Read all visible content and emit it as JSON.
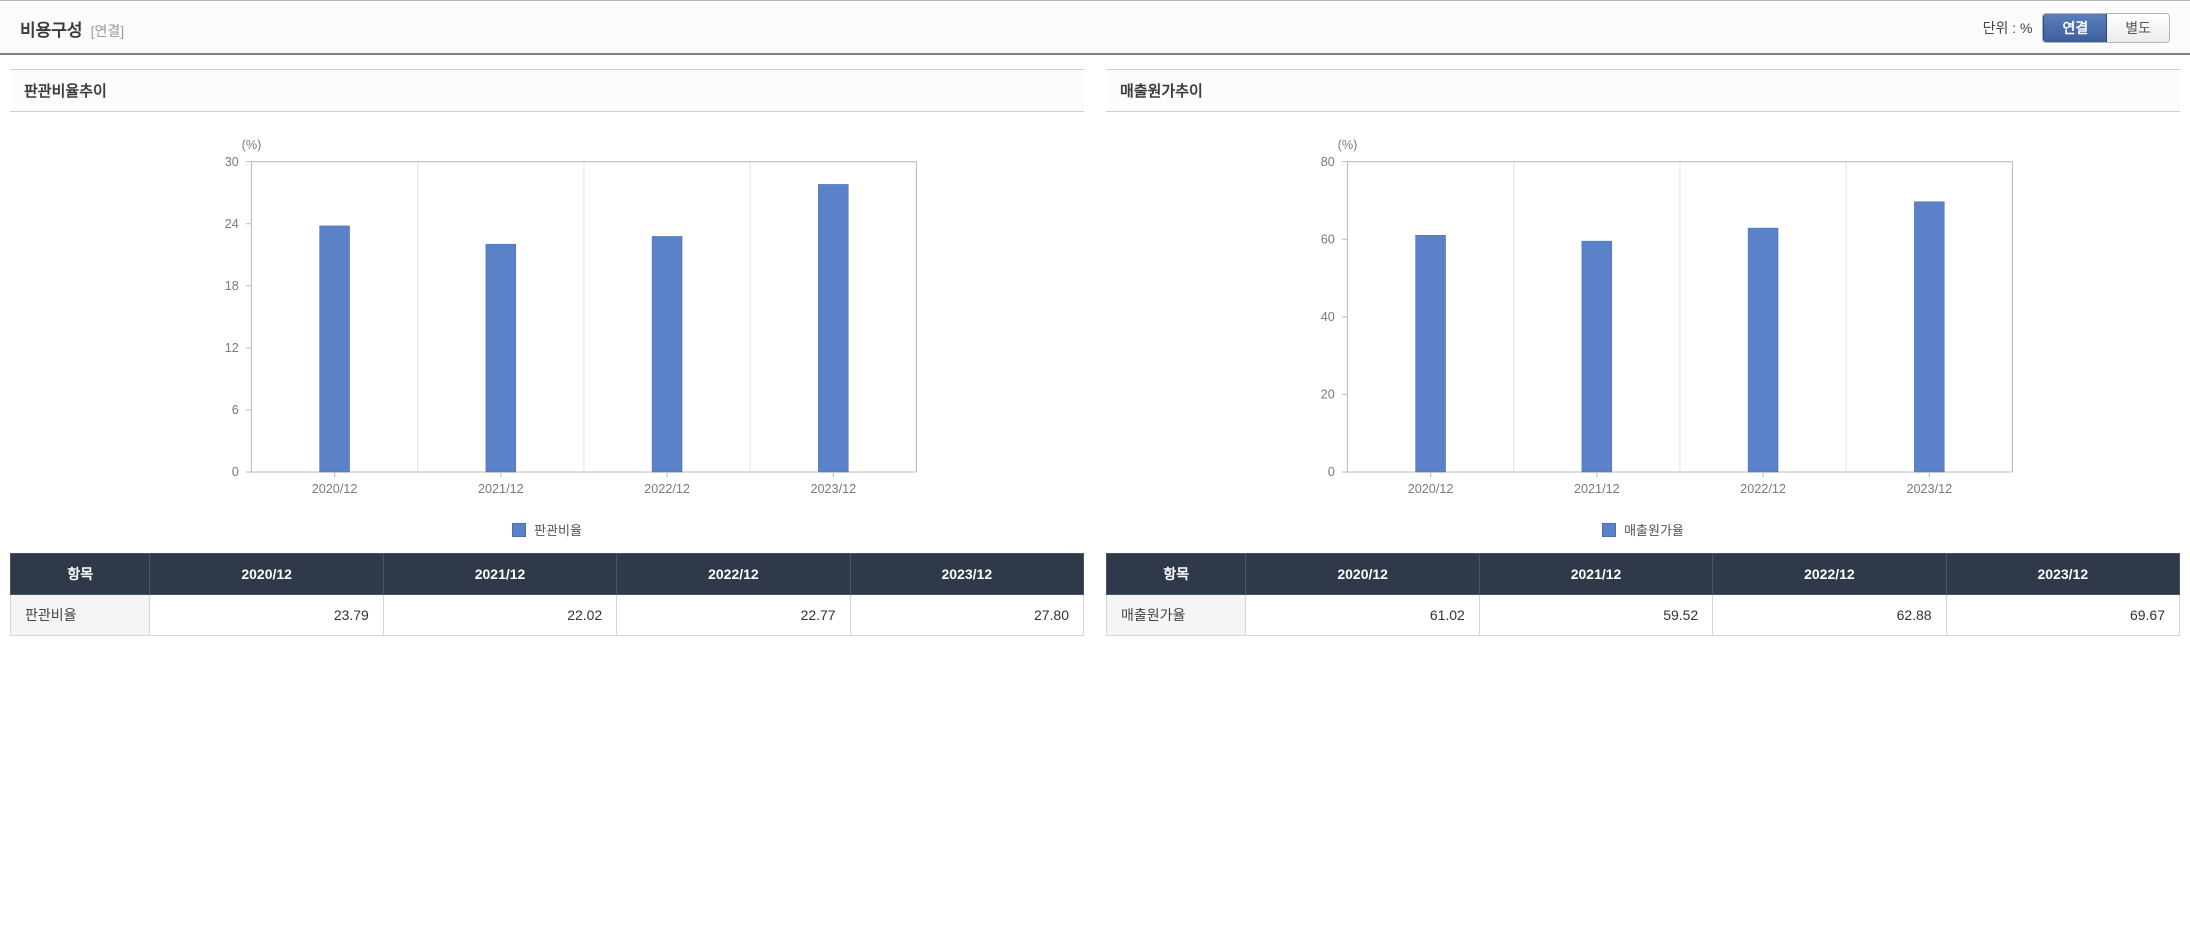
{
  "header": {
    "title": "비용구성",
    "subtitle": "[연결]",
    "unit_label": "단위 : %",
    "toggle": {
      "active": "연결",
      "inactive": "별도"
    }
  },
  "colors": {
    "bar_fill": "#5b81c8",
    "bar_stroke": "#4a6fb0",
    "grid": "#e4e4e4",
    "frame": "#bcbcbc",
    "axis_text": "#7a7a7a",
    "table_header_bg": "#2f394a",
    "table_header_fg": "#ffffff",
    "row_head_bg": "#f5f5f5"
  },
  "panels": [
    {
      "id": "sga",
      "title": "판관비율추이",
      "chart": {
        "type": "bar",
        "y_unit": "(%)",
        "categories": [
          "2020/12",
          "2021/12",
          "2022/12",
          "2023/12"
        ],
        "values": [
          23.79,
          22.02,
          22.77,
          27.8
        ],
        "ylim": [
          0,
          30
        ],
        "yticks": [
          0,
          6,
          12,
          18,
          24,
          30
        ],
        "bar_color": "#5b81c8",
        "bar_width": 0.18,
        "legend_label": "판관비율"
      },
      "table": {
        "header_first": "항목",
        "columns": [
          "2020/12",
          "2021/12",
          "2022/12",
          "2023/12"
        ],
        "row_label": "판관비율",
        "row_values": [
          "23.79",
          "22.02",
          "22.77",
          "27.80"
        ]
      }
    },
    {
      "id": "cogs",
      "title": "매출원가추이",
      "chart": {
        "type": "bar",
        "y_unit": "(%)",
        "categories": [
          "2020/12",
          "2021/12",
          "2022/12",
          "2023/12"
        ],
        "values": [
          61.02,
          59.52,
          62.88,
          69.67
        ],
        "ylim": [
          0,
          80
        ],
        "yticks": [
          0,
          20,
          40,
          60,
          80
        ],
        "bar_color": "#5b81c8",
        "bar_width": 0.18,
        "legend_label": "매출원가율"
      },
      "table": {
        "header_first": "항목",
        "columns": [
          "2020/12",
          "2021/12",
          "2022/12",
          "2023/12"
        ],
        "row_label": "매출원가율",
        "row_values": [
          "61.02",
          "59.52",
          "62.88",
          "69.67"
        ]
      }
    }
  ]
}
